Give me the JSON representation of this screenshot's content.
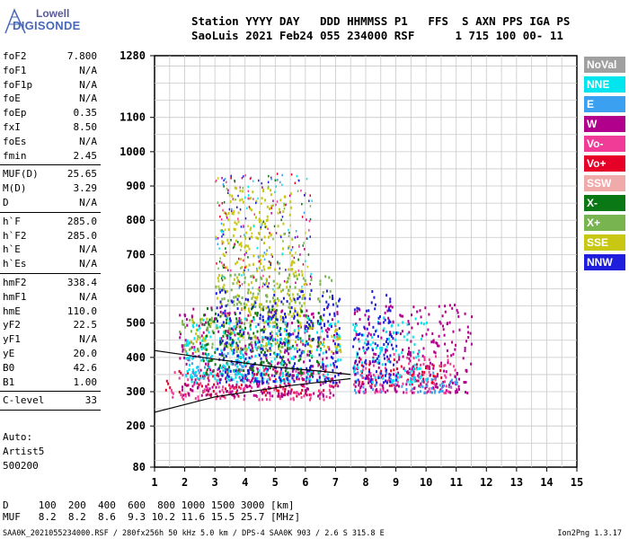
{
  "logo": {
    "line1": "Lowell",
    "line2": "DIGISONDE"
  },
  "header": {
    "line1": "Station YYYY DAY   DDD HHMMSS P1   FFS  S AXN PPS IGA PS",
    "line2": "SaoLuis 2021 Feb24 055 234000 RSF      1 715 100 00- 11"
  },
  "params": [
    {
      "k": "foF2",
      "v": "7.800"
    },
    {
      "k": "foF1",
      "v": "N/A"
    },
    {
      "k": "foF1p",
      "v": "N/A"
    },
    {
      "k": "foE",
      "v": "N/A"
    },
    {
      "k": "foEp",
      "v": "0.35"
    },
    {
      "k": "fxI",
      "v": "8.50"
    },
    {
      "k": "foEs",
      "v": "N/A"
    },
    {
      "k": "fmin",
      "v": "2.45"
    },
    {
      "k": "---"
    },
    {
      "k": "MUF(D)",
      "v": "25.65"
    },
    {
      "k": "M(D)",
      "v": "3.29"
    },
    {
      "k": "D",
      "v": "N/A"
    },
    {
      "k": "---"
    },
    {
      "k": "h`F",
      "v": "285.0"
    },
    {
      "k": "h`F2",
      "v": "285.0"
    },
    {
      "k": "h`E",
      "v": "N/A"
    },
    {
      "k": "h`Es",
      "v": "N/A"
    },
    {
      "k": "---"
    },
    {
      "k": "hmF2",
      "v": "338.4"
    },
    {
      "k": "hmF1",
      "v": "N/A"
    },
    {
      "k": "hmE",
      "v": "110.0"
    },
    {
      "k": "yF2",
      "v": "22.5"
    },
    {
      "k": "yF1",
      "v": "N/A"
    },
    {
      "k": "yE",
      "v": "20.0"
    },
    {
      "k": "B0",
      "v": "42.6"
    },
    {
      "k": "B1",
      "v": "1.00"
    },
    {
      "k": "---"
    },
    {
      "k": "C-level",
      "v": "33"
    },
    {
      "k": "---"
    }
  ],
  "info": {
    "line1": "Auto:",
    "line2": "Artist5",
    "line3": "500200"
  },
  "muf_table": {
    "row1": "D     100  200  400  600  800 1000 1500 3000 [km]",
    "row2": "MUF   8.2  8.2  8.6  9.3 10.2 11.6 15.5 25.7 [MHz]"
  },
  "footer": "SAA0K_2021055234000.RSF / 280fx256h 50 kHz 5.0 km / DPS-4 SAA0K 903 / 2.6 S 315.8 E",
  "version": "Ion2Png 1.3.17",
  "legend": [
    {
      "label": "NoVal",
      "color": "#a0a0a0"
    },
    {
      "label": "NNE",
      "color": "#00e5ee"
    },
    {
      "label": "E",
      "color": "#3ca0f0"
    },
    {
      "label": "W",
      "color": "#b0008c"
    },
    {
      "label": "Vo-",
      "color": "#f03c96"
    },
    {
      "label": "Vo+",
      "color": "#e60028"
    },
    {
      "label": "SSW",
      "color": "#f0aaaa"
    },
    {
      "label": "X-",
      "color": "#0a7814"
    },
    {
      "label": "X+",
      "color": "#78b450"
    },
    {
      "label": "SSE",
      "color": "#c8c814"
    },
    {
      "label": "NNW",
      "color": "#1e1edc"
    }
  ],
  "chart_data": {
    "type": "scatter",
    "xlabel": "",
    "ylabel": "",
    "x_ticks": [
      1,
      2,
      3,
      4,
      5,
      6,
      7,
      8,
      9,
      10,
      11,
      12,
      13,
      14,
      15
    ],
    "y_ticks": [
      80,
      200,
      300,
      400,
      500,
      600,
      700,
      800,
      900,
      1000,
      1100,
      1280
    ],
    "xlim": [
      1,
      15
    ],
    "ylim": [
      80,
      1280
    ],
    "grid": true,
    "series": [
      {
        "name": "Vo+",
        "color": "#e60028",
        "regions": [
          [
            1.3,
            7.0,
            290,
            370
          ],
          [
            7.5,
            10.5,
            320,
            400
          ]
        ]
      },
      {
        "name": "Vo-",
        "color": "#f03c96",
        "regions": [
          [
            1.5,
            7.0,
            280,
            380
          ],
          [
            7.5,
            11.0,
            300,
            420
          ]
        ]
      },
      {
        "name": "W",
        "color": "#b0008c",
        "regions": [
          [
            1.8,
            7.2,
            290,
            550
          ],
          [
            7.6,
            11.5,
            300,
            560
          ]
        ]
      },
      {
        "name": "E",
        "color": "#3ca0f0",
        "regions": [
          [
            7.6,
            11.0,
            300,
            360
          ],
          [
            2.0,
            4.0,
            350,
            420
          ]
        ]
      },
      {
        "name": "SSE",
        "color": "#c8c814",
        "regions": [
          [
            2.0,
            7.2,
            420,
            520
          ],
          [
            3.0,
            6.0,
            520,
            660
          ],
          [
            3.2,
            5.6,
            660,
            900
          ]
        ]
      },
      {
        "name": "X+",
        "color": "#78b450",
        "regions": [
          [
            1.8,
            5.5,
            420,
            520
          ],
          [
            3.0,
            7.0,
            550,
            650
          ]
        ]
      },
      {
        "name": "X-",
        "color": "#0a7814",
        "regions": [
          [
            2.5,
            6.5,
            350,
            550
          ]
        ]
      },
      {
        "name": "NNE",
        "color": "#00e5ee",
        "regions": [
          [
            2.0,
            10.0,
            330,
            520
          ]
        ]
      },
      {
        "name": "NNW",
        "color": "#1e1edc",
        "regions": [
          [
            3.0,
            9.0,
            330,
            600
          ]
        ]
      }
    ],
    "trace_profile": {
      "x": [
        1.0,
        3.0,
        5.5,
        7.5
      ],
      "y": [
        240,
        285,
        318,
        338
      ]
    },
    "trace_upper": {
      "x": [
        1.0,
        3.0,
        5.0,
        6.5,
        7.5
      ],
      "y": [
        420,
        395,
        372,
        360,
        350
      ]
    }
  }
}
